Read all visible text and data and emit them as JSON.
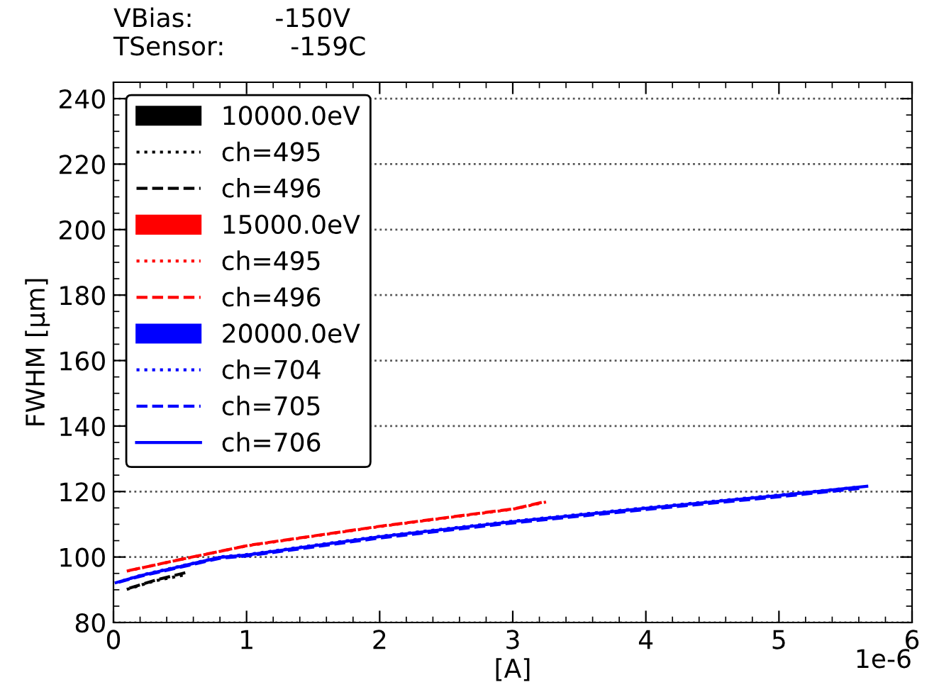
{
  "chart_data": {
    "type": "line",
    "xlabel": "[A]",
    "ylabel": "FWHM [µm]",
    "annotations": [
      "VBias:          -150V",
      "TSensor:        -159C",
      "1e-6"
    ],
    "xlim": [
      0,
      6
    ],
    "xticks": [
      0,
      1,
      2,
      3,
      4,
      5,
      6
    ],
    "ylim": [
      80,
      245
    ],
    "yticks": [
      80,
      100,
      120,
      140,
      160,
      180,
      200,
      220,
      240
    ],
    "grid": "y",
    "legend": "top left",
    "series": [
      {
        "name": "10000.0eV",
        "color": "#000000"
      },
      {
        "name": "ch=495",
        "color": "#000000",
        "line_style": "dotted",
        "x": [
          0.1,
          0.3,
          0.55
        ],
        "values": [
          90.1,
          92.6,
          94.7
        ]
      },
      {
        "name": "ch=496",
        "color": "#000000",
        "line_style": "dashed",
        "x": [
          0.12,
          0.32,
          0.57
        ],
        "values": [
          90.5,
          93.0,
          95.5
        ]
      },
      {
        "name": "15000.0eV",
        "color": "#ff0000"
      },
      {
        "name": "ch=495",
        "color": "#ff0000",
        "line_style": "dotted",
        "x": [
          0.1,
          0.5,
          1,
          2,
          3,
          3.25
        ],
        "values": [
          95.7,
          99.2,
          103.4,
          109.3,
          114.6,
          116.8
        ]
      },
      {
        "name": "ch=496",
        "color": "#ff0000",
        "line_style": "dashed",
        "x": [
          0.12,
          0.52,
          1.02,
          2.02,
          3.02,
          3.24
        ],
        "values": [
          95.9,
          99.4,
          103.6,
          109.5,
          114.8,
          116.9
        ]
      },
      {
        "name": "20000.0eV",
        "color": "#0000ff"
      },
      {
        "name": "ch=704",
        "color": "#0000ff",
        "line_style": "dotted",
        "x": [
          0.07,
          0.21,
          0.81,
          1.01,
          2.01,
          3.01,
          4.01,
          5.01,
          5.58
        ],
        "values": [
          92.8,
          94.5,
          100.1,
          100.8,
          106.4,
          111.0,
          115.1,
          119.0,
          121.3
        ]
      },
      {
        "name": "ch=705",
        "color": "#0000ff",
        "line_style": "dashed",
        "x": [
          0.04,
          0.2,
          0.8,
          1,
          2,
          3,
          4,
          5,
          5.62
        ],
        "values": [
          92.3,
          94.1,
          99.6,
          100.3,
          105.8,
          110.4,
          114.5,
          118.4,
          121.0
        ]
      },
      {
        "name": "ch=706",
        "color": "#0000ff",
        "line_style": "solid",
        "x": [
          0.02,
          0.2,
          0.8,
          1,
          2,
          3,
          4,
          5,
          5.66
        ],
        "values": [
          92.2,
          94.3,
          99.9,
          100.6,
          106.2,
          110.8,
          114.9,
          118.8,
          121.6
        ]
      }
    ]
  }
}
